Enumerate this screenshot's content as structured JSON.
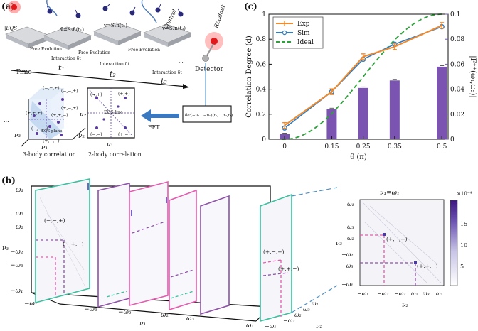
{
  "panel_labels": {
    "a": "(a)",
    "b": "(b)",
    "c": "(c)"
  },
  "panel_a": {
    "eqs_label": "|EQS",
    "free_evolution": [
      "Free Evolution",
      "Free Evolution",
      "Free Evolution"
    ],
    "interactions": [
      {
        "eq": "ṽ=S₂ñ(t₁)",
        "label": "Interaction δt",
        "t": "t₁"
      },
      {
        "eq": "ṽ=S₂ñ(t₂)",
        "label": "Interaction δt",
        "t": "t₂"
      },
      {
        "eq": "ṽ=S₂ñ(t₃)",
        "label": "Interaction δt",
        "t": "t₃"
      }
    ],
    "control": "Control",
    "readout": "Readout",
    "detector": "Detector",
    "time": "Time",
    "ellipsis": "...",
    "formula": "δeⁱ(−ν₁…−νₙ)(t₁,…,t₂,t₁)",
    "fft": "FFT",
    "eqs_plane": "EQS plane",
    "eqs_line": "EQS line",
    "corr3_caption": "3-body correlation",
    "corr2_caption": "2-body correlation",
    "corr3_labels": [
      "(+,+,+)",
      "(−,+,+)",
      "(−,−,+)",
      "(+,−,+)",
      "(+,+,−)",
      "(−,−,−)",
      "(+,−,−)"
    ],
    "corr2_labels": [
      "(−,+)",
      "(+,+)",
      "(−,−)",
      "(+,−)"
    ],
    "axes": {
      "v1": "ν₁",
      "v2": "ν₂",
      "v3": "ν₃"
    }
  },
  "chart_data": {
    "type": "bar+line",
    "x": [
      0,
      0.15,
      0.25,
      0.35,
      0.5
    ],
    "xtick_labels": [
      "0",
      "0.15",
      "0.25",
      "0.35",
      "0.5"
    ],
    "xlabel": "θ (π)",
    "ylabel": "Correlation Degree (d)",
    "ylim": [
      0,
      1
    ],
    "yticks": [
      "0",
      "0.2",
      "0.4",
      "0.6",
      "0.8",
      "1"
    ],
    "y2label": "|F⁺⁺(ω₁,ω₂)|",
    "y2lim": [
      0,
      0.1
    ],
    "y2ticks": [
      "0",
      "0.02",
      "0.04",
      "0.06",
      "0.08",
      "0.1"
    ],
    "y2_multiplier": "",
    "series": [
      {
        "name": "Exp",
        "color": "#f08a2e",
        "values": [
          0.11,
          0.38,
          0.66,
          0.74,
          0.91
        ]
      },
      {
        "name": "Sim",
        "color": "#2f7cc0",
        "values": [
          0.09,
          0.38,
          0.64,
          0.76,
          0.9
        ]
      },
      {
        "name": "Ideal",
        "color": "#2ea23a",
        "dashed": true
      }
    ],
    "bars": {
      "color": "#7a54b0",
      "values": [
        0.004,
        0.024,
        0.041,
        0.047,
        0.058
      ]
    }
  },
  "panel_b": {
    "header": "ν₁=ω₁",
    "omega_labels": [
      "ω₁",
      "ω₃",
      "ω₂",
      "−ω₂",
      "−ω₃",
      "−ω₁"
    ],
    "x_ticks": [
      "−ω₁",
      "−ω₃",
      "−ω₂",
      "ω₂",
      "ω₃",
      "ω₁"
    ],
    "v1": "ν₁",
    "v2": "ν₂",
    "v3": "ν₃",
    "annots_3d": [
      "(−,−,+)",
      "(−,+,−)",
      "(+,−,+)",
      "(+,+,−)"
    ],
    "annots_2d": [
      "(+,−,+)",
      "(+,+,−)"
    ],
    "colorbar_title": "×10⁻⁴",
    "colorbar_ticks": [
      "15",
      "10",
      "5"
    ]
  }
}
